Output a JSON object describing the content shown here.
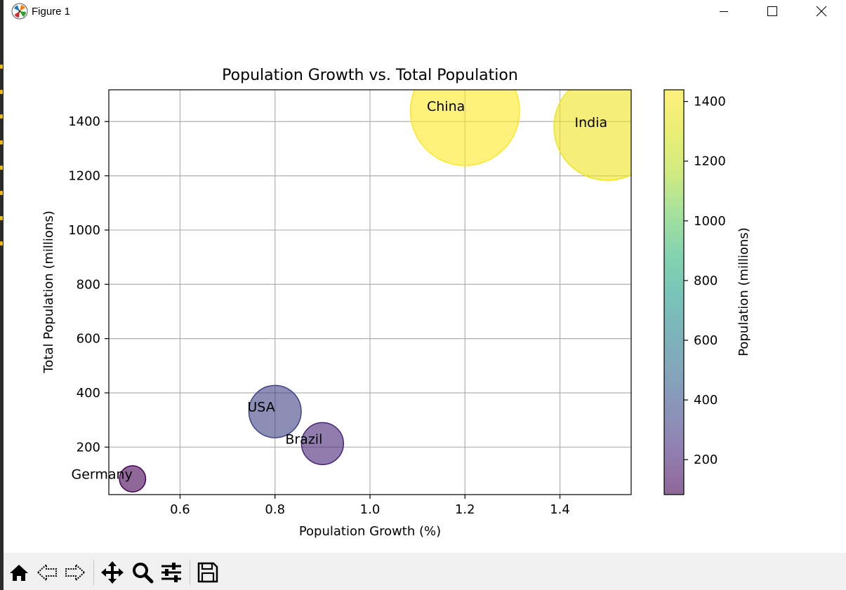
{
  "window": {
    "title": "Figure 1",
    "icons": {
      "app": "matplotlib-logo-icon",
      "minimize": "minimize-icon",
      "maximize": "maximize-icon",
      "close": "close-icon"
    }
  },
  "toolbar": {
    "buttons": [
      {
        "name": "home",
        "icon": "home-icon"
      },
      {
        "name": "back",
        "icon": "back-arrow-icon"
      },
      {
        "name": "forward",
        "icon": "forward-arrow-icon"
      },
      {
        "name": "pan",
        "icon": "move-icon"
      },
      {
        "name": "zoom",
        "icon": "zoom-icon"
      },
      {
        "name": "configure-subplots",
        "icon": "sliders-icon"
      },
      {
        "name": "save",
        "icon": "save-icon"
      }
    ]
  },
  "chart_data": {
    "type": "scatter",
    "title": "Population Growth vs. Total Population",
    "xlabel": "Population Growth (%)",
    "ylabel": "Total Population (millions)",
    "xlim": [
      0.45,
      1.55
    ],
    "ylim": [
      25,
      1517
    ],
    "xticks": [
      0.6,
      0.8,
      1.0,
      1.2,
      1.4
    ],
    "xtick_labels": [
      "0.6",
      "0.8",
      "1.0",
      "1.2",
      "1.4"
    ],
    "yticks": [
      200,
      400,
      600,
      800,
      1000,
      1200,
      1400
    ],
    "ytick_labels": [
      "200",
      "400",
      "600",
      "800",
      "1000",
      "1200",
      "1400"
    ],
    "grid": true,
    "colormap": "viridis",
    "alpha": 0.6,
    "points": [
      {
        "label": "China",
        "x": 1.2,
        "y": 1439
      },
      {
        "label": "India",
        "x": 1.5,
        "y": 1380
      },
      {
        "label": "USA",
        "x": 0.8,
        "y": 331
      },
      {
        "label": "Brazil",
        "x": 0.9,
        "y": 213
      },
      {
        "label": "Germany",
        "x": 0.5,
        "y": 83
      }
    ],
    "colorbar": {
      "label": "Population (millions)",
      "range": [
        83,
        1439
      ],
      "ticks": [
        200,
        400,
        600,
        800,
        1000,
        1200,
        1400
      ],
      "tick_labels": [
        "200",
        "400",
        "600",
        "800",
        "1000",
        "1200",
        "1400"
      ]
    }
  }
}
